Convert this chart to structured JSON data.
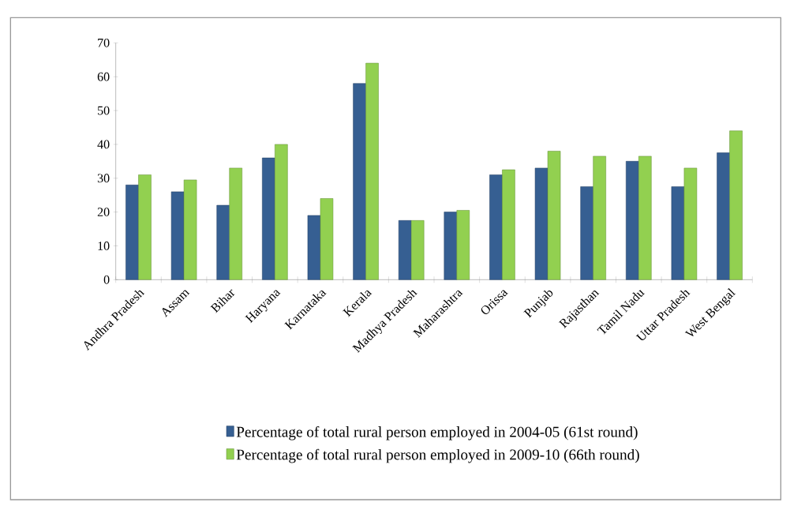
{
  "chart_data": {
    "type": "bar",
    "categories": [
      "Andhra Pradesh",
      "Assam",
      "Bihar",
      "Haryana",
      "Karnataka",
      "Kerala",
      "Madhya Pradesh",
      "Maharashtra",
      "Orissa",
      "Punjab",
      "Rajasthan",
      "Tamil Nadu",
      "Uttar Pradesh",
      "West Bengal"
    ],
    "series": [
      {
        "name": "Percentage of total rural person employed in 2004-05 (61st round)",
        "color": "#365f92",
        "values": [
          28,
          26,
          22,
          36,
          19,
          58,
          17.5,
          20,
          31,
          33,
          27.5,
          35,
          27.5,
          37.5
        ]
      },
      {
        "name": "Percentage of total rural person employed in 2009-10 (66th round)",
        "color": "#92d050",
        "values": [
          31,
          29.5,
          33,
          40,
          24,
          64,
          17.5,
          20.5,
          32.5,
          38,
          36.5,
          36.5,
          33,
          44
        ]
      }
    ],
    "ylim": [
      0,
      70
    ],
    "yticks": [
      0,
      10,
      20,
      30,
      40,
      50,
      60,
      70
    ],
    "grid": false,
    "legend": "bottom"
  }
}
